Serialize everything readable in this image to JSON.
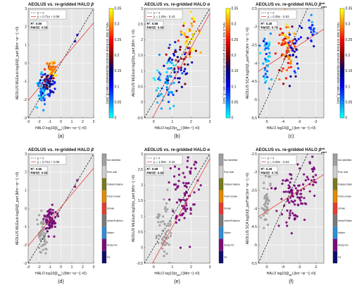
{
  "colors": {
    "panel_bg": "#e6e6e6",
    "grid": "#ffffff",
    "identity_line": "#000000",
    "fit_line": "#e8413c",
    "colormap": [
      "#00ffff",
      "#0080ff",
      "#0000ff",
      "#000080",
      "#800000",
      "#ff0000",
      "#ff8000",
      "#ffff00"
    ]
  },
  "categories": {
    "labels": [
      "Not identified",
      "Pure dust",
      "Polluted Marine",
      "Fresh smoke",
      "Smoke",
      "Urban/Pollution",
      "Marine",
      "Dusty mix",
      "Ice"
    ],
    "colors": [
      "#a0a0a0",
      "#cdcdcd",
      "#7a7a1a",
      "#e68a00",
      "#e63c32",
      "#7a7a7a",
      "#2d8fd6",
      "#7b0c7b",
      "#0d0d6e"
    ]
  },
  "chart_data": [
    {
      "id": "a",
      "caption": "(a)",
      "type": "scatter",
      "title_parts": [
        "AEOLUS vs. re-gridded HALO ",
        "β"
      ],
      "xlabel_parts": [
        "HALO log10(β",
        "aer",
        ") [Mm⁻¹sr⁻¹] >0)"
      ],
      "ylabel": "AEOLUS MLEsub log10(β_part [Mm⁻¹sr⁻¹] >0)",
      "xlim": [
        -3,
        3
      ],
      "ylim": [
        -3,
        3
      ],
      "xticks": [
        "-3",
        "-2",
        "-1",
        "0",
        "1",
        "2",
        "3"
      ],
      "yticks": [
        "-3",
        "-2",
        "-1",
        "0",
        "1",
        "2",
        "3"
      ],
      "legend": [
        "y = x",
        "y = 0.71x + 0.08"
      ],
      "fit": {
        "slope": 0.71,
        "intercept": 0.08
      },
      "stats": [
        "R²: 0.56",
        "RMSE: 0.59"
      ],
      "color_mode": "continuous",
      "colorbar": {
        "label": "HALO 532 nm linear aerosol depolarisation ratio (δ_532)",
        "ticks": [
          "0",
          "0.05",
          "0.1",
          "0.15",
          "0.2",
          "0.25",
          "0.3",
          "0.35"
        ],
        "range": [
          0,
          0.35
        ]
      },
      "clusters": [
        {
          "cx": -1.7,
          "cy": -1.45,
          "sx": 0.25,
          "sy": 0.45,
          "n": 55,
          "c": 0.05
        },
        {
          "cx": -1.2,
          "cy": -0.85,
          "sx": 0.2,
          "sy": 0.25,
          "n": 25,
          "c": 0.18
        },
        {
          "cx": -0.8,
          "cy": -0.35,
          "sx": 0.22,
          "sy": 0.25,
          "n": 45,
          "c": 0.3
        },
        {
          "cx": -0.95,
          "cy": -1.1,
          "sx": 0.3,
          "sy": 0.3,
          "n": 20,
          "c": 0.12
        }
      ],
      "outliers": [
        {
          "x": 1.3,
          "y": 1.2,
          "c": 0.12
        },
        {
          "x": 1.5,
          "y": 1.55,
          "c": 0.1
        }
      ]
    },
    {
      "id": "b",
      "caption": "(b)",
      "type": "scatter",
      "title_parts": [
        "AEOLUS vs. re-gridded HALO ",
        "α"
      ],
      "xlabel_parts": [
        "HALO log10(α",
        "aer",
        ") [Mm⁻¹] >0)"
      ],
      "ylabel": "AEOLUS MLEsub log10(α_part [Mm⁻¹] >0)",
      "xlim": [
        -0.5,
        3
      ],
      "ylim": [
        -0.5,
        3
      ],
      "xticks": [
        "0",
        "1",
        "2",
        "3"
      ],
      "yticks": [
        "-0.5",
        "0",
        "0.5",
        "1",
        "1.5",
        "2",
        "2.5",
        "3"
      ],
      "legend": [
        "y = x",
        "y = 1.09x - 0.43"
      ],
      "fit": {
        "slope": 1.09,
        "intercept": -0.43
      },
      "stats": [
        "R²: 0.58",
        "RMSE: 0.66"
      ],
      "color_mode": "continuous",
      "colorbar": {
        "label": "HALO 532 nm linear aerosol depolarisation ratio (δ_532)",
        "ticks": [
          "0",
          "0.05",
          "0.1",
          "0.15",
          "0.2",
          "0.25",
          "0.3",
          "0.35"
        ],
        "range": [
          0,
          0.35
        ]
      },
      "clusters": [
        {
          "cx": 0.6,
          "cy": 0.55,
          "sx": 0.25,
          "sy": 0.45,
          "n": 55,
          "c": 0.04
        },
        {
          "cx": 1.3,
          "cy": 1.1,
          "sx": 0.35,
          "sy": 0.45,
          "n": 35,
          "c": 0.12
        },
        {
          "cx": 1.9,
          "cy": 2.2,
          "sx": 0.25,
          "sy": 0.35,
          "n": 40,
          "c": 0.32
        },
        {
          "cx": 1.6,
          "cy": 1.6,
          "sx": 0.3,
          "sy": 0.4,
          "n": 20,
          "c": 0.22
        }
      ],
      "outliers": []
    },
    {
      "id": "c",
      "caption": "(c)",
      "type": "scatter",
      "title_parts": [
        "AEOLUS vs. re-gridded HALO ",
        "β",
        "att",
        "part"
      ],
      "xlabel_parts": [
        "HALO log10(β",
        "att",
        ") [km⁻¹sr⁻¹] >0)"
      ],
      "ylabel": "AEOLUS SCA log10(β_part^att [km⁻¹sr⁻¹] >0)",
      "xlim": [
        -5.5,
        -1.5
      ],
      "ylim": [
        -5.5,
        -2.5
      ],
      "xticks": [
        "-5",
        "-4",
        "-3",
        "-2"
      ],
      "yticks": [
        "-5.5",
        "-5",
        "-4.5",
        "-4",
        "-3.5",
        "-3",
        "-2.5"
      ],
      "legend": [
        "y = x",
        "y = 0.29x - 2.63"
      ],
      "fit": {
        "slope": 0.29,
        "intercept": -2.63
      },
      "stats": [
        "R²: 0.28",
        "RMSE: 0.79"
      ],
      "color_mode": "continuous",
      "colorbar": {
        "label": "HALO 532 nm linear aerosol depolarisation ratio (δ_532)",
        "ticks": [
          "0",
          "0.05",
          "0.1",
          "0.15",
          "0.2",
          "0.25",
          "0.3",
          "0.35"
        ],
        "range": [
          0,
          0.35
        ]
      },
      "clusters": [
        {
          "cx": -5.0,
          "cy": -3.8,
          "sx": 0.12,
          "sy": 0.4,
          "n": 50,
          "c": 0.04
        },
        {
          "cx": -3.9,
          "cy": -3.7,
          "sx": 0.25,
          "sy": 0.35,
          "n": 35,
          "c": 0.26
        },
        {
          "cx": -3.7,
          "cy": -3.5,
          "sx": 0.2,
          "sy": 0.3,
          "n": 35,
          "c": 0.31
        },
        {
          "cx": -3.3,
          "cy": -3.6,
          "sx": 0.25,
          "sy": 0.45,
          "n": 30,
          "c": 0.12
        },
        {
          "cx": -2.2,
          "cy": -3.1,
          "sx": 0.15,
          "sy": 0.25,
          "n": 20,
          "c": 0.06
        }
      ],
      "outliers": []
    },
    {
      "id": "d",
      "caption": "(d)",
      "type": "scatter",
      "title_parts": [
        "AEOLUS vs. re-gridded HALO ",
        "β"
      ],
      "xlabel_parts": [
        "HALO log10(β",
        "aer",
        ") [Mm⁻¹sr⁻¹] >0)"
      ],
      "ylabel": "AEOLUS MLEsub log10(β_part [Mm⁻¹sr⁻¹] >0)",
      "xlim": [
        -3,
        3
      ],
      "ylim": [
        -3,
        3
      ],
      "xticks": [
        "-3",
        "-2",
        "-1",
        "0",
        "1",
        "2",
        "3"
      ],
      "yticks": [
        "-3",
        "-2",
        "-1",
        "0",
        "1",
        "2",
        "3"
      ],
      "legend": [
        "y = x",
        "y = 0.71x + 0.08"
      ],
      "fit": {
        "slope": 0.71,
        "intercept": 0.08
      },
      "stats": [
        "R²: 0.56",
        "RMSE: 0.59"
      ],
      "color_mode": "categorical",
      "clusters": [
        {
          "cx": -1.7,
          "cy": -1.45,
          "sx": 0.25,
          "sy": 0.45,
          "n": 55,
          "k": 0
        },
        {
          "cx": -1.0,
          "cy": -0.6,
          "sx": 0.3,
          "sy": 0.35,
          "n": 70,
          "k": 7
        }
      ],
      "outliers": [
        {
          "x": 1.3,
          "y": 1.2,
          "k": 7
        },
        {
          "x": 1.5,
          "y": 1.55,
          "k": 7
        }
      ]
    },
    {
      "id": "e",
      "caption": "(e)",
      "type": "scatter",
      "title_parts": [
        "AEOLUS vs. re-gridded HALO ",
        "α"
      ],
      "xlabel_parts": [
        "HALO log10(α",
        "aer",
        ") [Mm⁻¹] >0)"
      ],
      "ylabel": "AEOLUS MLEsub log10(α_part [Mm⁻¹] >0)",
      "xlim": [
        -0.5,
        3
      ],
      "ylim": [
        -0.5,
        3
      ],
      "xticks": [
        "0",
        "1",
        "2",
        "3"
      ],
      "yticks": [
        "-0.5",
        "0",
        "0.5",
        "1",
        "1.5",
        "2",
        "2.5",
        "3"
      ],
      "legend": [
        "y = x",
        "y = 1.09x - 0.43"
      ],
      "fit": {
        "slope": 1.09,
        "intercept": -0.43
      },
      "stats": [
        "R²: 0.58",
        "RMSE: 0.66"
      ],
      "color_mode": "categorical",
      "clusters": [
        {
          "cx": 0.6,
          "cy": 0.55,
          "sx": 0.25,
          "sy": 0.45,
          "n": 55,
          "k": 0
        },
        {
          "cx": 1.6,
          "cy": 1.7,
          "sx": 0.4,
          "sy": 0.6,
          "n": 80,
          "k": 7
        }
      ],
      "outliers": []
    },
    {
      "id": "f",
      "caption": "(f)",
      "type": "scatter",
      "title_parts": [
        "AEOLUS vs. re-gridded HALO ",
        "β",
        "att",
        "part"
      ],
      "xlabel_parts": [
        "HALO log10(β",
        "att",
        ") [km⁻¹sr⁻¹] >0)"
      ],
      "ylabel": "AEOLUS SCA log10(β_part^att [km⁻¹sr⁻¹] >0)",
      "xlim": [
        -5.5,
        -1.5
      ],
      "ylim": [
        -5.5,
        -2.5
      ],
      "xticks": [
        "-5",
        "-4",
        "-3",
        "-2"
      ],
      "yticks": [
        "-5.5",
        "-5",
        "-4.5",
        "-4",
        "-3.5",
        "-3",
        "-2.5"
      ],
      "legend": [
        "y = x",
        "y = 0.29x - 2.63"
      ],
      "fit": {
        "slope": 0.29,
        "intercept": -2.63
      },
      "stats": [
        "R²: 0.28",
        "RMSE: 0.79"
      ],
      "color_mode": "categorical",
      "clusters": [
        {
          "cx": -5.0,
          "cy": -3.8,
          "sx": 0.12,
          "sy": 0.4,
          "n": 50,
          "k": 0
        },
        {
          "cx": -3.5,
          "cy": -3.6,
          "sx": 0.45,
          "sy": 0.4,
          "n": 90,
          "k": 7
        },
        {
          "cx": -2.2,
          "cy": -3.1,
          "sx": 0.15,
          "sy": 0.25,
          "n": 20,
          "k": 7
        }
      ],
      "outliers": []
    }
  ]
}
